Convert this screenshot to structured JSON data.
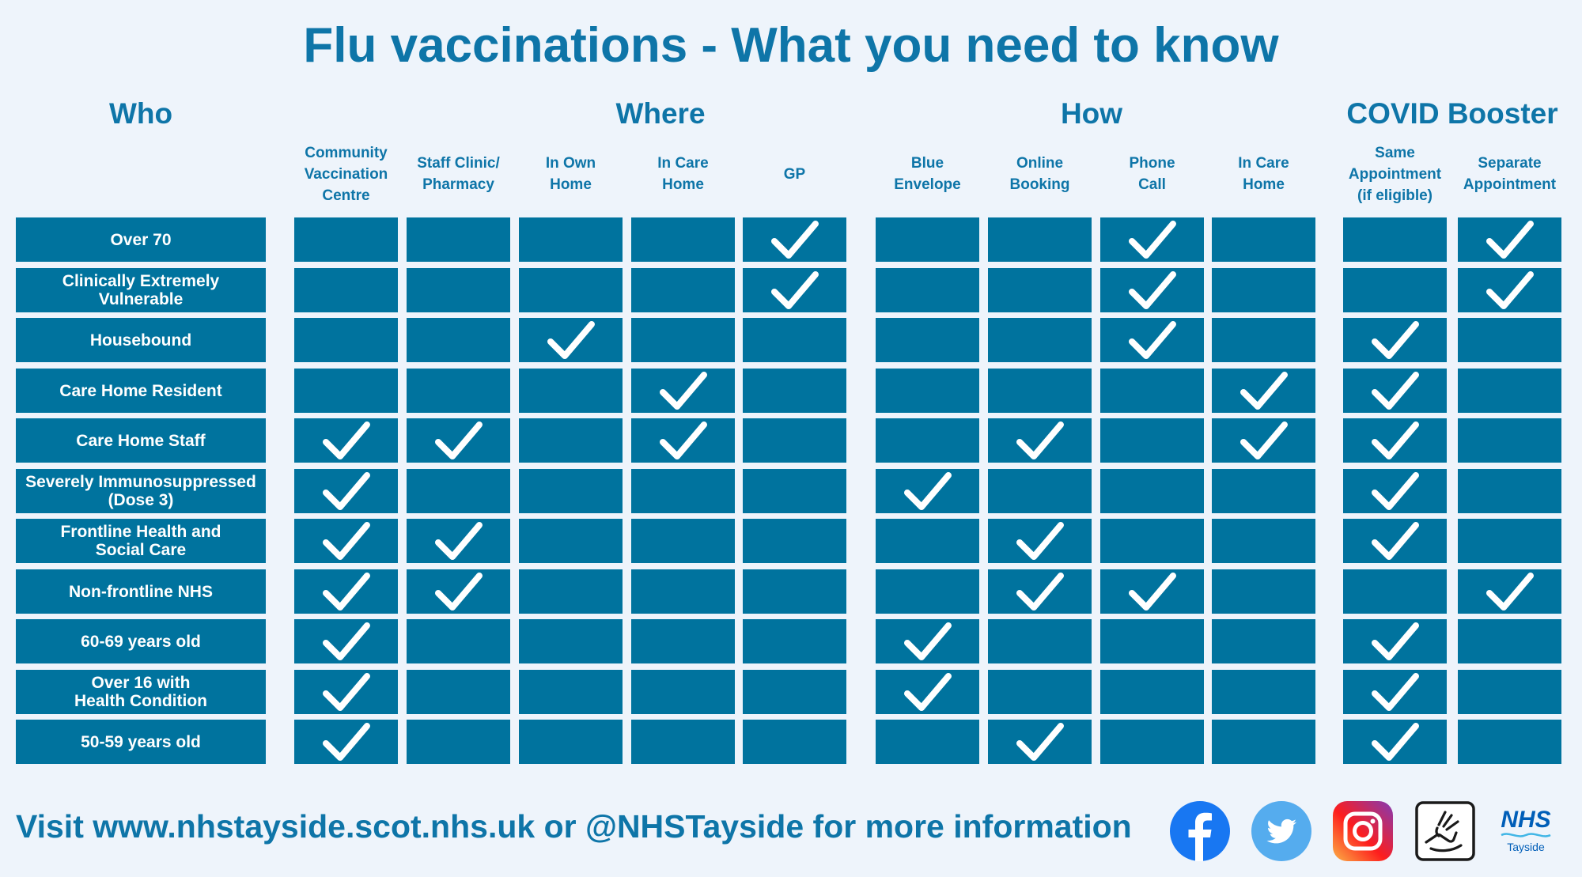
{
  "title": "Flu vaccinations - What you need to know",
  "sections": {
    "who": "Who",
    "where": "Where",
    "how": "How",
    "covid": "COVID Booster"
  },
  "columns": [
    {
      "group": "where",
      "label": "Community\nVaccination\nCentre"
    },
    {
      "group": "where",
      "label": "Staff Clinic/\nPharmacy"
    },
    {
      "group": "where",
      "label": "In Own\nHome"
    },
    {
      "group": "where",
      "label": "In Care\nHome"
    },
    {
      "group": "where",
      "label": "GP"
    },
    {
      "group": "how",
      "label": "Blue\nEnvelope"
    },
    {
      "group": "how",
      "label": "Online\nBooking"
    },
    {
      "group": "how",
      "label": "Phone\nCall"
    },
    {
      "group": "how",
      "label": "In Care\nHome"
    },
    {
      "group": "covid",
      "label": "Same\nAppointment\n(if eligible)"
    },
    {
      "group": "covid",
      "label": "Separate\nAppointment"
    }
  ],
  "rows": [
    {
      "label": "Over 70",
      "checks": [
        0,
        0,
        0,
        0,
        1,
        0,
        0,
        1,
        0,
        0,
        1
      ]
    },
    {
      "label": "Clinically Extremely\nVulnerable",
      "checks": [
        0,
        0,
        0,
        0,
        1,
        0,
        0,
        1,
        0,
        0,
        1
      ]
    },
    {
      "label": "Housebound",
      "checks": [
        0,
        0,
        1,
        0,
        0,
        0,
        0,
        1,
        0,
        1,
        0
      ]
    },
    {
      "label": "Care Home Resident",
      "checks": [
        0,
        0,
        0,
        1,
        0,
        0,
        0,
        0,
        1,
        1,
        0
      ]
    },
    {
      "label": "Care Home Staff",
      "checks": [
        1,
        1,
        0,
        1,
        0,
        0,
        1,
        0,
        1,
        1,
        0
      ]
    },
    {
      "label": "Severely Immunosuppressed\n(Dose 3)",
      "checks": [
        1,
        0,
        0,
        0,
        0,
        1,
        0,
        0,
        0,
        1,
        0
      ]
    },
    {
      "label": "Frontline Health and\nSocial Care",
      "checks": [
        1,
        1,
        0,
        0,
        0,
        0,
        1,
        0,
        0,
        1,
        0
      ]
    },
    {
      "label": "Non-frontline NHS",
      "checks": [
        1,
        1,
        0,
        0,
        0,
        0,
        1,
        1,
        0,
        0,
        1
      ]
    },
    {
      "label": "60-69 years old",
      "checks": [
        1,
        0,
        0,
        0,
        0,
        1,
        0,
        0,
        0,
        1,
        0
      ]
    },
    {
      "label": "Over 16 with\nHealth Condition",
      "checks": [
        1,
        0,
        0,
        0,
        0,
        1,
        0,
        0,
        0,
        1,
        0
      ]
    },
    {
      "label": "50-59 years old",
      "checks": [
        1,
        0,
        0,
        0,
        0,
        0,
        1,
        0,
        0,
        1,
        0
      ]
    }
  ],
  "footer": {
    "text": "Visit www.nhstayside.scot.nhs.uk or @NHSTayside for more information",
    "icons": [
      "facebook-icon",
      "twitter-icon",
      "instagram-icon",
      "sign-language-icon"
    ],
    "logo_main": "NHS",
    "logo_sub": "Tayside"
  },
  "colors": {
    "accent": "#0e75a8",
    "cell": "#00739e",
    "background": "#eef4fb"
  }
}
